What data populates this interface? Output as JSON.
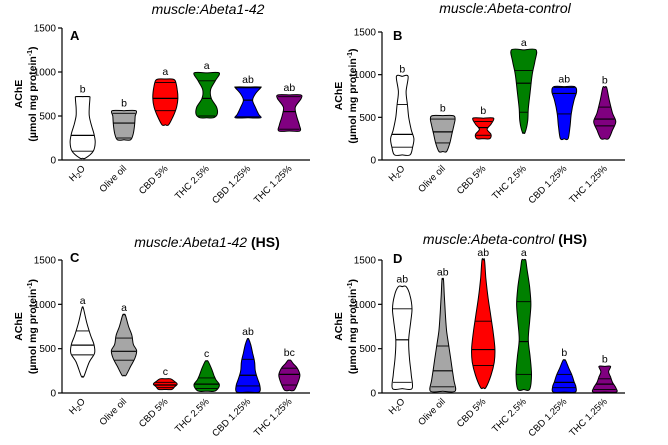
{
  "figure": {
    "y_axis_label_top": "AChE",
    "y_axis_label_bottom": "(µmol mg protein",
    "y_axis_label_sup": "-1",
    "y_axis_label_close": ")"
  },
  "chart_data": [
    {
      "id": "A",
      "type": "violin",
      "panel_label": "A",
      "title": "muscle:Abeta1-42",
      "title_suffix": "",
      "ylim": [
        0,
        1500
      ],
      "yticks": [
        "0",
        "500",
        "1000",
        "1500"
      ],
      "categories": [
        {
          "label": "H",
          "sub": "2",
          "tail": "O",
          "color": "#ffffff",
          "letter": "b",
          "min": 20,
          "max": 720,
          "q1": 100,
          "median": 280,
          "q3": 720,
          "profile": [
            [
              20,
              0.2
            ],
            [
              100,
              0.8
            ],
            [
              200,
              0.95
            ],
            [
              300,
              0.85
            ],
            [
              400,
              0.65
            ],
            [
              500,
              0.5
            ],
            [
              600,
              0.5
            ],
            [
              700,
              0.55
            ],
            [
              720,
              0.5
            ]
          ]
        },
        {
          "label": "Olive oil",
          "color": "#a6a6a6",
          "letter": "b",
          "min": 230,
          "max": 560,
          "q1": 250,
          "median": 420,
          "q3": 530,
          "profile": [
            [
              230,
              0.5
            ],
            [
              300,
              0.7
            ],
            [
              400,
              0.8
            ],
            [
              500,
              0.85
            ],
            [
              560,
              0.9
            ]
          ]
        },
        {
          "label": "CBD 5%",
          "color": "#ff0000",
          "letter": "a",
          "min": 400,
          "max": 920,
          "q1": 560,
          "median": 700,
          "q3": 880,
          "profile": [
            [
              400,
              0.25
            ],
            [
              500,
              0.6
            ],
            [
              600,
              0.85
            ],
            [
              700,
              0.95
            ],
            [
              800,
              0.9
            ],
            [
              900,
              0.75
            ],
            [
              920,
              0.5
            ]
          ]
        },
        {
          "label": "THC 2.5%",
          "color": "#008000",
          "letter": "a",
          "min": 480,
          "max": 990,
          "q1": 500,
          "median": 700,
          "q3": 900,
          "profile": [
            [
              480,
              0.5
            ],
            [
              520,
              0.8
            ],
            [
              600,
              0.75
            ],
            [
              700,
              0.35
            ],
            [
              800,
              0.3
            ],
            [
              900,
              0.65
            ],
            [
              990,
              0.95
            ]
          ]
        },
        {
          "label": "CBD 1.25%",
          "color": "#0000ff",
          "letter": "ab",
          "min": 480,
          "max": 830,
          "q1": 490,
          "median": 680,
          "q3": 820,
          "profile": [
            [
              480,
              0.95
            ],
            [
              520,
              0.8
            ],
            [
              600,
              0.55
            ],
            [
              680,
              0.35
            ],
            [
              750,
              0.55
            ],
            [
              820,
              0.95
            ],
            [
              830,
              0.9
            ]
          ]
        },
        {
          "label": "THC 1.25%",
          "color": "#800080",
          "letter": "ab",
          "min": 330,
          "max": 740,
          "q1": 350,
          "median": 550,
          "q3": 720,
          "profile": [
            [
              330,
              0.8
            ],
            [
              400,
              0.75
            ],
            [
              500,
              0.55
            ],
            [
              600,
              0.45
            ],
            [
              700,
              0.9
            ],
            [
              740,
              0.85
            ]
          ]
        }
      ]
    },
    {
      "id": "B",
      "type": "violin",
      "panel_label": "B",
      "title": "muscle:Abeta-control",
      "title_suffix": "",
      "ylim": [
        0,
        1500
      ],
      "yticks": [
        "0",
        "500",
        "1000",
        "1500"
      ],
      "categories": [
        {
          "label": "H",
          "sub": "2",
          "tail": "O",
          "color": "#ffffff",
          "letter": "b",
          "min": 60,
          "max": 980,
          "q1": 150,
          "median": 300,
          "q3": 650,
          "profile": [
            [
              60,
              0.6
            ],
            [
              150,
              0.8
            ],
            [
              250,
              0.9
            ],
            [
              350,
              0.7
            ],
            [
              500,
              0.5
            ],
            [
              650,
              0.4
            ],
            [
              800,
              0.3
            ],
            [
              980,
              0.45
            ]
          ]
        },
        {
          "label": "Olive oil",
          "color": "#a6a6a6",
          "letter": "b",
          "min": 100,
          "max": 520,
          "q1": 200,
          "median": 330,
          "q3": 480,
          "profile": [
            [
              100,
              0.3
            ],
            [
              200,
              0.55
            ],
            [
              300,
              0.7
            ],
            [
              400,
              0.85
            ],
            [
              480,
              0.95
            ],
            [
              520,
              0.8
            ]
          ]
        },
        {
          "label": "CBD 5%",
          "color": "#ff0000",
          "letter": "b",
          "min": 250,
          "max": 490,
          "q1": 290,
          "median": 380,
          "q3": 450,
          "profile": [
            [
              250,
              0.5
            ],
            [
              300,
              0.6
            ],
            [
              360,
              0.3
            ],
            [
              420,
              0.6
            ],
            [
              490,
              0.8
            ]
          ]
        },
        {
          "label": "THC 2.5%",
          "color": "#008000",
          "letter": "a",
          "min": 320,
          "max": 1290,
          "q1": 560,
          "median": 900,
          "q3": 1050,
          "profile": [
            [
              320,
              0.1
            ],
            [
              450,
              0.3
            ],
            [
              600,
              0.35
            ],
            [
              800,
              0.5
            ],
            [
              1000,
              0.65
            ],
            [
              1150,
              0.85
            ],
            [
              1290,
              0.95
            ]
          ]
        },
        {
          "label": "CBD 1.25%",
          "color": "#0000ff",
          "letter": "ab",
          "min": 250,
          "max": 860,
          "q1": 540,
          "median": 780,
          "q3": 850,
          "profile": [
            [
              250,
              0.3
            ],
            [
              400,
              0.45
            ],
            [
              550,
              0.55
            ],
            [
              700,
              0.75
            ],
            [
              800,
              0.95
            ],
            [
              860,
              0.8
            ]
          ]
        },
        {
          "label": "THC 1.25%",
          "color": "#800080",
          "letter": "b",
          "min": 250,
          "max": 850,
          "q1": 400,
          "median": 480,
          "q3": 620,
          "profile": [
            [
              250,
              0.3
            ],
            [
              350,
              0.6
            ],
            [
              450,
              0.85
            ],
            [
              550,
              0.6
            ],
            [
              700,
              0.35
            ],
            [
              850,
              0.15
            ]
          ]
        }
      ]
    },
    {
      "id": "C",
      "type": "violin",
      "panel_label": "C",
      "title": "muscle:Abeta1-42",
      "title_suffix": " (HS)",
      "ylim": [
        0,
        1500
      ],
      "yticks": [
        "0",
        "500",
        "1000",
        "1500"
      ],
      "categories": [
        {
          "label": "H",
          "sub": "2",
          "tail": "O",
          "color": "#ffffff",
          "letter": "a",
          "min": 190,
          "max": 960,
          "q1": 430,
          "median": 540,
          "q3": 700,
          "profile": [
            [
              190,
              0.1
            ],
            [
              350,
              0.5
            ],
            [
              450,
              0.9
            ],
            [
              550,
              0.85
            ],
            [
              650,
              0.6
            ],
            [
              800,
              0.3
            ],
            [
              960,
              0.05
            ]
          ]
        },
        {
          "label": "Olive oil",
          "color": "#a6a6a6",
          "letter": "a",
          "min": 200,
          "max": 880,
          "q1": 370,
          "median": 470,
          "q3": 620,
          "profile": [
            [
              200,
              0.15
            ],
            [
              300,
              0.5
            ],
            [
              400,
              0.85
            ],
            [
              480,
              0.95
            ],
            [
              550,
              0.7
            ],
            [
              650,
              0.6
            ],
            [
              750,
              0.35
            ],
            [
              880,
              0.1
            ]
          ]
        },
        {
          "label": "CBD 5%",
          "color": "#ff0000",
          "letter": "c",
          "min": 40,
          "max": 160,
          "q1": 60,
          "median": 90,
          "q3": 120,
          "profile": [
            [
              40,
              0.5
            ],
            [
              70,
              0.7
            ],
            [
              100,
              0.9
            ],
            [
              130,
              0.7
            ],
            [
              160,
              0.4
            ]
          ]
        },
        {
          "label": "THC 2.5%",
          "color": "#008000",
          "letter": "c",
          "min": 20,
          "max": 360,
          "q1": 50,
          "median": 100,
          "q3": 170,
          "profile": [
            [
              20,
              0.6
            ],
            [
              60,
              0.9
            ],
            [
              100,
              0.95
            ],
            [
              150,
              0.7
            ],
            [
              200,
              0.55
            ],
            [
              280,
              0.35
            ],
            [
              360,
              0.1
            ]
          ]
        },
        {
          "label": "CBD 1.25%",
          "color": "#0000ff",
          "letter": "ab",
          "min": 10,
          "max": 610,
          "q1": 80,
          "median": 200,
          "q3": 380,
          "profile": [
            [
              10,
              0.85
            ],
            [
              80,
              0.9
            ],
            [
              150,
              0.75
            ],
            [
              250,
              0.55
            ],
            [
              350,
              0.5
            ],
            [
              450,
              0.35
            ],
            [
              550,
              0.2
            ],
            [
              610,
              0.05
            ]
          ]
        },
        {
          "label": "THC 1.25%",
          "color": "#800080",
          "letter": "bc",
          "min": 30,
          "max": 370,
          "q1": 90,
          "median": 210,
          "q3": 280,
          "profile": [
            [
              30,
              0.35
            ],
            [
              100,
              0.6
            ],
            [
              200,
              0.8
            ],
            [
              280,
              0.6
            ],
            [
              330,
              0.3
            ],
            [
              370,
              0.1
            ]
          ]
        }
      ]
    },
    {
      "id": "D",
      "type": "violin",
      "panel_label": "D",
      "title": "muscle:Abeta-control",
      "title_suffix": " (HS)",
      "ylim": [
        0,
        1500
      ],
      "yticks": [
        "0",
        "500",
        "1000",
        "1500"
      ],
      "categories": [
        {
          "label": "H",
          "sub": "2",
          "tail": "O",
          "color": "#ffffff",
          "letter": "ab",
          "min": 50,
          "max": 1200,
          "q1": 120,
          "median": 600,
          "q3": 950,
          "profile": [
            [
              50,
              0.75
            ],
            [
              200,
              0.7
            ],
            [
              400,
              0.55
            ],
            [
              600,
              0.5
            ],
            [
              800,
              0.65
            ],
            [
              950,
              0.75
            ],
            [
              1100,
              0.6
            ],
            [
              1200,
              0.3
            ]
          ]
        },
        {
          "label": "Olive oil",
          "color": "#a6a6a6",
          "letter": "ab",
          "min": 20,
          "max": 1280,
          "q1": 70,
          "median": 250,
          "q3": 530,
          "profile": [
            [
              20,
              0.95
            ],
            [
              150,
              0.85
            ],
            [
              300,
              0.7
            ],
            [
              500,
              0.5
            ],
            [
              700,
              0.3
            ],
            [
              900,
              0.2
            ],
            [
              1100,
              0.12
            ],
            [
              1280,
              0.06
            ]
          ]
        },
        {
          "label": "CBD 5%",
          "color": "#ff0000",
          "letter": "ab",
          "min": 60,
          "max": 1500,
          "q1": 310,
          "median": 490,
          "q3": 810,
          "profile": [
            [
              60,
              0.2
            ],
            [
              200,
              0.6
            ],
            [
              350,
              0.85
            ],
            [
              500,
              0.9
            ],
            [
              700,
              0.75
            ],
            [
              900,
              0.55
            ],
            [
              1100,
              0.35
            ],
            [
              1300,
              0.2
            ],
            [
              1500,
              0.1
            ]
          ]
        },
        {
          "label": "THC 2.5%",
          "color": "#008000",
          "letter": "a",
          "min": 40,
          "max": 1500,
          "q1": 210,
          "median": 580,
          "q3": 1030,
          "profile": [
            [
              40,
              0.45
            ],
            [
              200,
              0.6
            ],
            [
              400,
              0.5
            ],
            [
              600,
              0.35
            ],
            [
              800,
              0.45
            ],
            [
              1000,
              0.55
            ],
            [
              1200,
              0.45
            ],
            [
              1400,
              0.25
            ],
            [
              1500,
              0.15
            ]
          ]
        },
        {
          "label": "CBD 1.25%",
          "color": "#0000ff",
          "letter": "b",
          "min": 10,
          "max": 370,
          "q1": 60,
          "median": 120,
          "q3": 210,
          "profile": [
            [
              10,
              0.85
            ],
            [
              70,
              0.9
            ],
            [
              130,
              0.75
            ],
            [
              200,
              0.6
            ],
            [
              280,
              0.35
            ],
            [
              370,
              0.1
            ]
          ]
        },
        {
          "label": "THC 1.25%",
          "color": "#800080",
          "letter": "b",
          "min": 10,
          "max": 300,
          "q1": 40,
          "median": 100,
          "q3": 160,
          "profile": [
            [
              10,
              0.9
            ],
            [
              60,
              0.85
            ],
            [
              120,
              0.6
            ],
            [
              180,
              0.45
            ],
            [
              240,
              0.3
            ],
            [
              300,
              0.45
            ]
          ]
        }
      ]
    }
  ]
}
